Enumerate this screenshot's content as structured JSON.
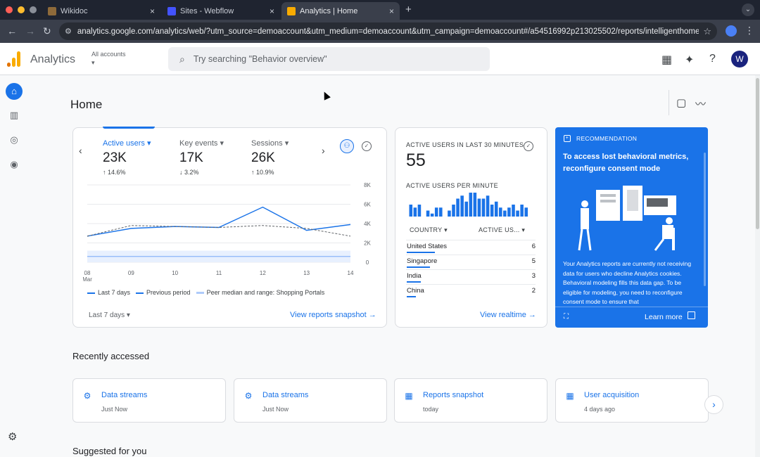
{
  "browser": {
    "tabs": [
      {
        "title": "Wikidoc",
        "fav_color": "#8e6a3a"
      },
      {
        "title": "Sites - Webflow",
        "fav_color": "#4353ff"
      },
      {
        "title": "Analytics | Home",
        "fav_color": "#f9ab00"
      }
    ],
    "tab_close": "×",
    "new_tab": "+",
    "url": "analytics.google.com/analytics/web/?utm_source=demoaccount&utm_medium=demoaccount&utm_campaign=demoaccount#/a54516992p213025502/reports/intelligenthome?params…"
  },
  "header": {
    "app_name": "Analytics",
    "accounts_label": "All accounts",
    "search_placeholder": "Try searching \"Behavior overview\"",
    "avatar_letter": "W"
  },
  "page": {
    "title": "Home"
  },
  "metrics": {
    "tabs": [
      {
        "label": "Active users ▾",
        "value": "23K",
        "change": "↑ 14.6%"
      },
      {
        "label": "Key events ▾",
        "value": "17K",
        "change": "↓ 3.2%"
      },
      {
        "label": "Sessions ▾",
        "value": "26K",
        "change": "↑ 10.9%"
      }
    ],
    "legend": {
      "last7": "Last 7 days",
      "previous": "Previous period",
      "peer": "Peer median and range: Shopping Portals"
    },
    "footer_range": "Last 7 days ▾",
    "view_link": "View reports snapshot →"
  },
  "chart_data": {
    "type": "line",
    "title": "",
    "xlabel": "",
    "ylabel": "",
    "x": [
      "08\nMar",
      "09",
      "10",
      "11",
      "12",
      "13",
      "14"
    ],
    "x_ticks": [
      "08",
      "09",
      "10",
      "11",
      "12",
      "13",
      "14"
    ],
    "x_subtick": "Mar",
    "ylim": [
      0,
      8000
    ],
    "y_ticks": [
      "0",
      "2K",
      "4K",
      "6K",
      "8K"
    ],
    "y_tick_values": [
      0,
      2000,
      4000,
      6000,
      8000
    ],
    "series": [
      {
        "name": "Last 7 days",
        "values": [
          2700,
          3500,
          3700,
          3600,
          5700,
          3300,
          3900
        ],
        "color": "#1a73e8",
        "style": "solid"
      },
      {
        "name": "Previous period",
        "values": [
          2700,
          3800,
          3700,
          3600,
          3800,
          3500,
          2700
        ],
        "color": "#5f6368",
        "style": "dashed"
      },
      {
        "name": "Peer median and range: Shopping Portals",
        "values": [
          600,
          600,
          600,
          600,
          600,
          600,
          600
        ],
        "range": [
          0,
          1200
        ],
        "color": "#8ab4f8",
        "style": "band"
      }
    ]
  },
  "realtime": {
    "title": "ACTIVE USERS IN LAST 30 MINUTES",
    "value": "55",
    "per_minute_label": "ACTIVE USERS PER MINUTE",
    "per_minute": [
      4,
      3,
      4,
      0,
      2,
      1,
      3,
      3,
      0,
      2,
      4,
      6,
      7,
      5,
      8,
      8,
      6,
      6,
      7,
      4,
      5,
      3,
      2,
      3,
      4,
      2,
      4,
      3
    ],
    "col_country": "COUNTRY ▾",
    "col_users": "ACTIVE US... ▾",
    "rows": [
      {
        "country": "United States",
        "value": "6",
        "share": 1.0
      },
      {
        "country": "Singapore",
        "value": "5",
        "share": 0.83
      },
      {
        "country": "India",
        "value": "3",
        "share": 0.5
      },
      {
        "country": "China",
        "value": "2",
        "share": 0.33
      }
    ],
    "view_link": "View realtime →"
  },
  "recommendation": {
    "tag": "RECOMMENDATION",
    "title": "To access lost behavioral metrics, reconfigure consent mode",
    "body": "Your Analytics reports are currently not receiving data for users who decline Analytics cookies. Behavioral modeling fills this data gap. To be eligible for modeling, you need to reconfigure consent mode to ensure that",
    "learn_more": "Learn more"
  },
  "recent": {
    "title": "Recently accessed",
    "items": [
      {
        "title": "Data streams",
        "sub": "Just Now",
        "icon": "⚙"
      },
      {
        "title": "Data streams",
        "sub": "Just Now",
        "icon": "⚙"
      },
      {
        "title": "Reports snapshot",
        "sub": "today",
        "icon": "▦"
      },
      {
        "title": "User acquisition",
        "sub": "4 days ago",
        "icon": "▦"
      }
    ]
  },
  "suggested": {
    "title": "Suggested for you"
  },
  "colors": {
    "accent": "#1a73e8",
    "logo_orange": "#f9ab00",
    "logo_dark": "#e37400"
  }
}
